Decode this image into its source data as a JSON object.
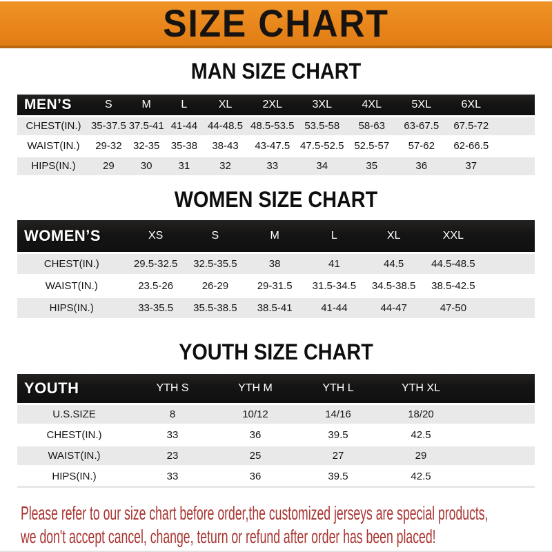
{
  "banner": {
    "title": "SIZE CHART",
    "bg_color": "#e8861c",
    "text_color": "#161311"
  },
  "sections": [
    {
      "heading": "MAN SIZE CHART",
      "table": {
        "header_label": "MEN’S",
        "columns": [
          "S",
          "M",
          "L",
          "XL",
          "2XL",
          "3XL",
          "4XL",
          "5XL",
          "6XL"
        ],
        "rows": [
          {
            "label": "CHEST(IN.)",
            "values": [
              "35-37.5",
              "37.5-41",
              "41-44",
              "44-48.5",
              "48.5-53.5",
              "53.5-58",
              "58-63",
              "63-67.5",
              "67.5-72"
            ]
          },
          {
            "label": "WAIST(IN.)",
            "values": [
              "29-32",
              "32-35",
              "35-38",
              "38-43",
              "43-47.5",
              "47.5-52.5",
              "52.5-57",
              "57-62",
              "62-66.5"
            ]
          },
          {
            "label": "HIPS(IN.)",
            "values": [
              "29",
              "30",
              "31",
              "32",
              "33",
              "34",
              "35",
              "36",
              "37"
            ]
          }
        ]
      }
    },
    {
      "heading": "WOMEN SIZE CHART",
      "table": {
        "header_label": "WOMEN’S",
        "columns": [
          "XS",
          "S",
          "M",
          "L",
          "XL",
          "XXL"
        ],
        "rows": [
          {
            "label": "CHEST(IN.)",
            "values": [
              "29.5-32.5",
              "32.5-35.5",
              "38",
              "41",
              "44.5",
              "44.5-48.5"
            ]
          },
          {
            "label": "WAIST(IN.)",
            "values": [
              "23.5-26",
              "26-29",
              "29-31.5",
              "31.5-34.5",
              "34.5-38.5",
              "38.5-42.5"
            ]
          },
          {
            "label": "HIPS(IN.)",
            "values": [
              "33-35.5",
              "35.5-38.5",
              "38.5-41",
              "41-44",
              "44-47",
              "47-50"
            ]
          }
        ]
      }
    },
    {
      "heading": "YOUTH SIZE CHART",
      "table": {
        "header_label": "YOUTH",
        "columns": [
          "YTH S",
          "YTH M",
          "YTH L",
          "YTH XL"
        ],
        "rows": [
          {
            "label": "U.S.SIZE",
            "values": [
              "8",
              "10/12",
              "14/16",
              "18/20"
            ]
          },
          {
            "label": "CHEST(IN.)",
            "values": [
              "33",
              "36",
              "39.5",
              "42.5"
            ]
          },
          {
            "label": "WAIST(IN.)",
            "values": [
              "23",
              "25",
              "27",
              "29"
            ]
          },
          {
            "label": "HIPS(IN.)",
            "values": [
              "33",
              "36",
              "39.5",
              "42.5"
            ]
          }
        ]
      }
    }
  ],
  "disclaimer": {
    "line1": "Please refer to our size chart before order,the customized jerseys are special products,",
    "line2": "we don't accept cancel, change, teturn or refund after order has been placed!",
    "color": "#a93431"
  },
  "colors": {
    "accent_orange": "#e8861c",
    "header_black": "#151515",
    "row_gray": "#e9e9e9",
    "disclaimer_red": "#a93431"
  }
}
